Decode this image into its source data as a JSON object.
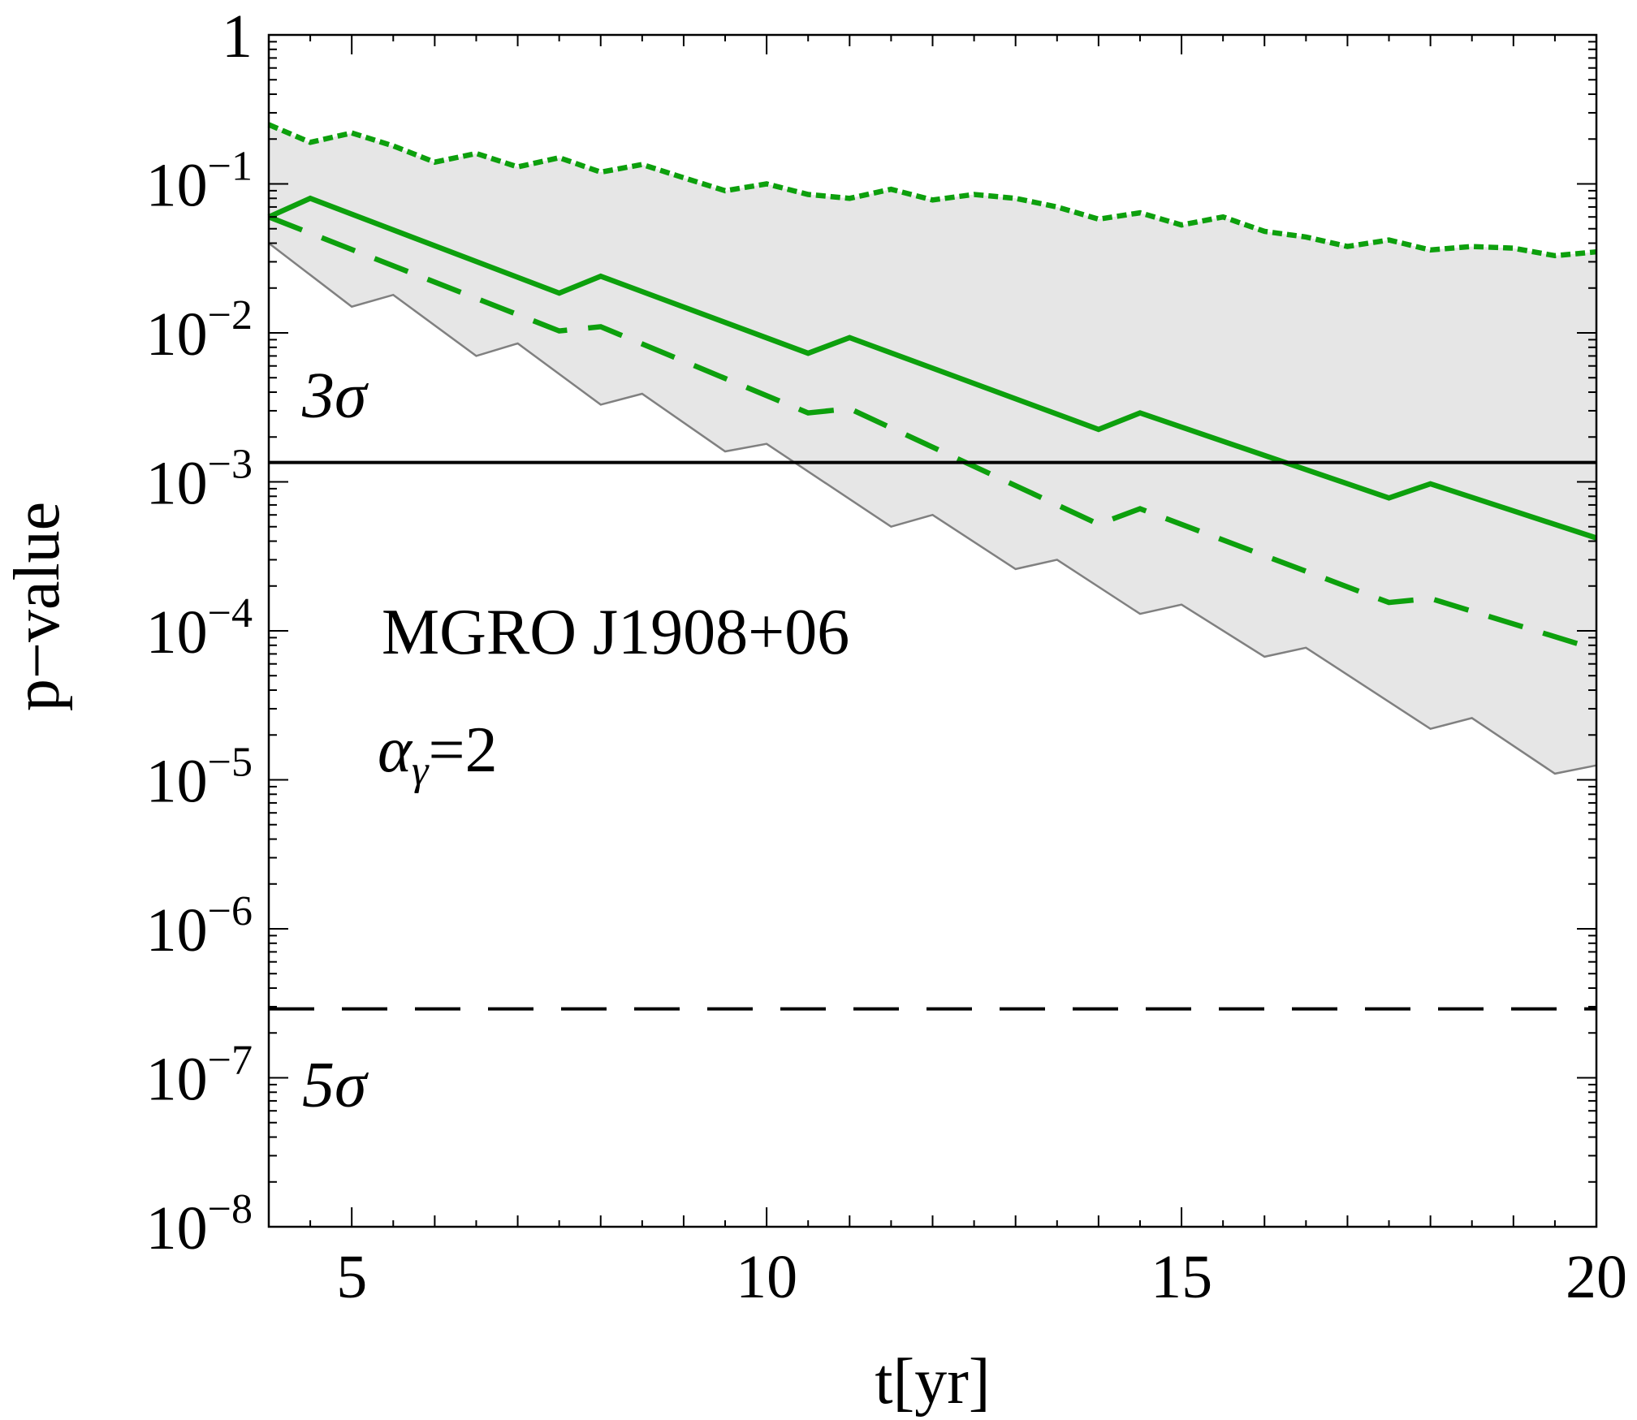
{
  "chart_data": {
    "type": "line",
    "xlabel": "t[yr]",
    "ylabel": "p−value",
    "xlim": [
      4,
      20
    ],
    "ylim": [
      1e-08,
      1
    ],
    "yscale": "log",
    "x_ticks": [
      {
        "value": 5,
        "label": "5"
      },
      {
        "value": 10,
        "label": "10"
      },
      {
        "value": 15,
        "label": "15"
      },
      {
        "value": 20,
        "label": "20"
      }
    ],
    "y_ticks": [
      {
        "exp": 0,
        "base": "1",
        "sup": ""
      },
      {
        "exp": -1,
        "base": "10",
        "sup": "−1"
      },
      {
        "exp": -2,
        "base": "10",
        "sup": "−2"
      },
      {
        "exp": -3,
        "base": "10",
        "sup": "−3"
      },
      {
        "exp": -4,
        "base": "10",
        "sup": "−4"
      },
      {
        "exp": -5,
        "base": "10",
        "sup": "−5"
      },
      {
        "exp": -6,
        "base": "10",
        "sup": "−6"
      },
      {
        "exp": -7,
        "base": "10",
        "sup": "−7"
      },
      {
        "exp": -8,
        "base": "10",
        "sup": "−8"
      }
    ],
    "band": {
      "color": "#e6e6e6",
      "upper": {
        "x": [
          4,
          4.5,
          5,
          5.5,
          6,
          6.5,
          7,
          7.5,
          8,
          8.5,
          9,
          9.5,
          10,
          10.5,
          11,
          11.5,
          12,
          12.5,
          13,
          13.5,
          14,
          14.5,
          15,
          15.5,
          16,
          16.5,
          17,
          17.5,
          18,
          18.5,
          19,
          19.5,
          20
        ],
        "y": [
          0.25,
          0.19,
          0.22,
          0.18,
          0.14,
          0.16,
          0.13,
          0.15,
          0.12,
          0.135,
          0.11,
          0.09,
          0.1,
          0.085,
          0.08,
          0.092,
          0.078,
          0.085,
          0.08,
          0.07,
          0.058,
          0.064,
          0.053,
          0.06,
          0.048,
          0.044,
          0.038,
          0.042,
          0.036,
          0.038,
          0.037,
          0.033,
          0.035
        ]
      },
      "lower": {
        "x": [
          4,
          5,
          5.5,
          6.5,
          7,
          8,
          8.5,
          9.5,
          10,
          11.5,
          12,
          13,
          13.5,
          14.5,
          15,
          16,
          16.5,
          18,
          18.5,
          19.5,
          20
        ],
        "y": [
          0.04,
          0.015,
          0.018,
          0.007,
          0.0085,
          0.0033,
          0.0039,
          0.0016,
          0.0018,
          0.0005,
          0.0006,
          0.00026,
          0.0003,
          0.00013,
          0.00015,
          6.7e-05,
          7.7e-05,
          2.2e-05,
          2.6e-05,
          1.1e-05,
          1.25e-05
        ]
      },
      "edge_color": "#808080"
    },
    "series": [
      {
        "color": "#0da00d",
        "dash": "12 6",
        "x": [
          4,
          4.5,
          5,
          5.5,
          6,
          6.5,
          7,
          7.5,
          8,
          8.5,
          9,
          9.5,
          10,
          10.5,
          11,
          11.5,
          12,
          12.5,
          13,
          13.5,
          14,
          14.5,
          15,
          15.5,
          16,
          16.5,
          17,
          17.5,
          18,
          18.5,
          19,
          19.5,
          20
        ],
        "y": [
          0.25,
          0.19,
          0.22,
          0.18,
          0.14,
          0.16,
          0.13,
          0.15,
          0.12,
          0.135,
          0.11,
          0.09,
          0.1,
          0.085,
          0.08,
          0.092,
          0.078,
          0.085,
          0.08,
          0.07,
          0.058,
          0.064,
          0.053,
          0.06,
          0.048,
          0.044,
          0.038,
          0.042,
          0.036,
          0.038,
          0.037,
          0.033,
          0.035
        ]
      },
      {
        "color": "#0da00d",
        "dash": "",
        "x": [
          4,
          4.5,
          7.5,
          8,
          10.5,
          11,
          14,
          14.5,
          17.5,
          18,
          20
        ],
        "y": [
          0.06,
          0.08,
          0.0185,
          0.024,
          0.0073,
          0.0093,
          0.00225,
          0.0029,
          0.00078,
          0.00097,
          0.00042
        ]
      },
      {
        "color": "#0da00d",
        "dash": "44 26",
        "x": [
          4,
          7.5,
          8,
          10.5,
          11,
          14,
          14.5,
          17.5,
          18,
          20
        ],
        "y": [
          0.06,
          0.0103,
          0.011,
          0.0029,
          0.0031,
          0.00052,
          0.00066,
          0.000155,
          0.000165,
          7.5e-05
        ]
      }
    ],
    "reference_lines": [
      {
        "y": 0.00135,
        "label": "3σ",
        "color": "#000000",
        "dash": ""
      },
      {
        "y": 2.9e-07,
        "label": "5σ",
        "color": "#000000",
        "dash": "56 34"
      }
    ],
    "annotations": {
      "source": "MGRO J1908+06",
      "alpha_symbol": "α",
      "alpha_sub": "γ",
      "alpha_value": "=2",
      "alpha_color": "#0da00d"
    }
  }
}
